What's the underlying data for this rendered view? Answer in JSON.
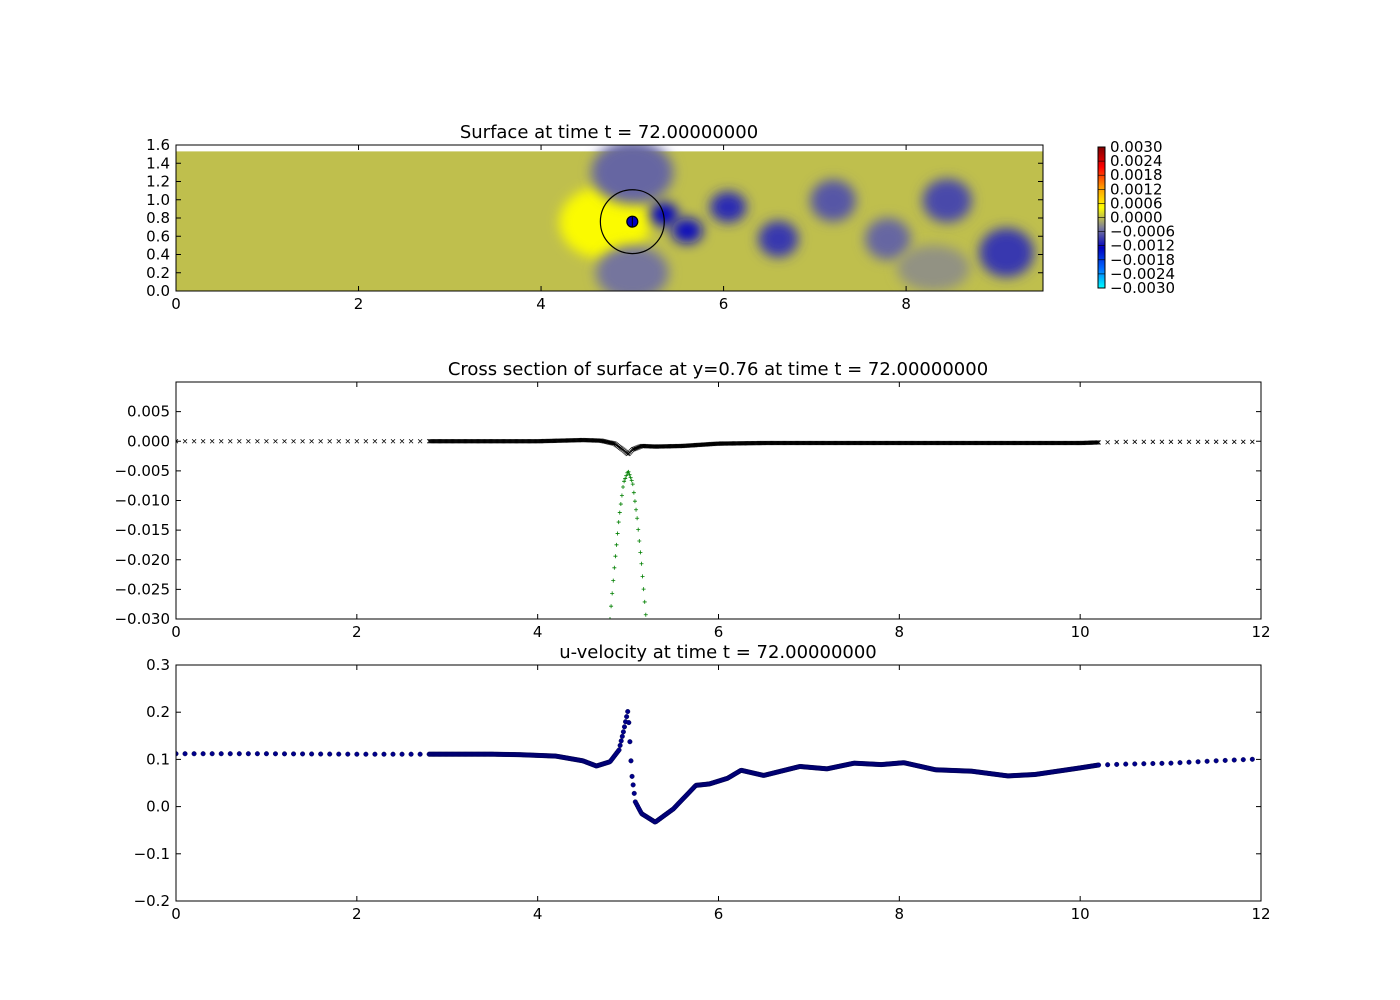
{
  "chart_data": [
    {
      "type": "heatmap",
      "title": "Surface at time t =    72.00000000",
      "xlabel": "",
      "ylabel": "",
      "xlim": [
        0,
        9.5
      ],
      "ylim": [
        0,
        1.6
      ],
      "xticks": [
        "0",
        "2",
        "4",
        "6",
        "8"
      ],
      "xtick_values": [
        0,
        2,
        4,
        6,
        8
      ],
      "yticks": [
        "0.0",
        "0.2",
        "0.4",
        "0.6",
        "0.8",
        "1.0",
        "1.2",
        "1.4",
        "1.6"
      ],
      "ytick_values": [
        0,
        0.2,
        0.4,
        0.6,
        0.8,
        1.0,
        1.2,
        1.4,
        1.6
      ],
      "field_top": 1.53,
      "colorbar": {
        "ticks": [
          "0.0030",
          "0.0024",
          "0.0018",
          "0.0012",
          "0.0006",
          "0.0000",
          "−0.0006",
          "−0.0012",
          "−0.0018",
          "−0.0024",
          "−0.0030"
        ],
        "range": [
          -0.003,
          0.003
        ],
        "colors": [
          "#00ffff",
          "#0066ff",
          "#0000c0",
          "#7f7f9a",
          "#ffff00",
          "#ff9900",
          "#ff0000",
          "#800000"
        ]
      },
      "background_value": 0.0,
      "body": {
        "x": 5.0,
        "y": 0.76,
        "outer_radius": 0.35,
        "inner_radius": 0.06
      },
      "features": [
        {
          "x": 4.7,
          "y": 0.75,
          "value": 0.0004,
          "rx": 0.5,
          "ry": 0.4
        },
        {
          "x": 5.0,
          "y": 1.3,
          "value": -0.0006,
          "rx": 0.45,
          "ry": 0.35
        },
        {
          "x": 5.0,
          "y": 0.2,
          "value": -0.0005,
          "rx": 0.4,
          "ry": 0.3
        },
        {
          "x": 5.35,
          "y": 0.84,
          "value": -0.0013,
          "rx": 0.15,
          "ry": 0.13
        },
        {
          "x": 5.6,
          "y": 0.66,
          "value": -0.0012,
          "rx": 0.17,
          "ry": 0.14
        },
        {
          "x": 6.05,
          "y": 0.92,
          "value": -0.001,
          "rx": 0.2,
          "ry": 0.17
        },
        {
          "x": 6.6,
          "y": 0.57,
          "value": -0.0009,
          "rx": 0.22,
          "ry": 0.2
        },
        {
          "x": 7.2,
          "y": 0.99,
          "value": -0.0007,
          "rx": 0.25,
          "ry": 0.23
        },
        {
          "x": 7.8,
          "y": 0.57,
          "value": -0.0006,
          "rx": 0.25,
          "ry": 0.23
        },
        {
          "x": 8.45,
          "y": 0.99,
          "value": -0.0008,
          "rx": 0.27,
          "ry": 0.24
        },
        {
          "x": 9.1,
          "y": 0.42,
          "value": -0.0009,
          "rx": 0.3,
          "ry": 0.27
        },
        {
          "x": 8.3,
          "y": 0.25,
          "value": -0.0003,
          "rx": 0.4,
          "ry": 0.25
        }
      ]
    },
    {
      "type": "scatter",
      "title": "Cross section of surface at y=0.76 at time t =    72.00000000",
      "xlabel": "",
      "ylabel": "",
      "xlim": [
        0,
        12
      ],
      "ylim": [
        -0.03,
        0.01
      ],
      "xticks": [
        "0",
        "2",
        "4",
        "6",
        "8",
        "10",
        "12"
      ],
      "xtick_values": [
        0,
        2,
        4,
        6,
        8,
        10,
        12
      ],
      "yticks": [
        "0.005",
        "0.000",
        "−0.005",
        "−0.010",
        "−0.015",
        "−0.020",
        "−0.025",
        "−0.030"
      ],
      "ytick_values": [
        0.005,
        0.0,
        -0.005,
        -0.01,
        -0.015,
        -0.02,
        -0.025,
        -0.03
      ],
      "series": [
        {
          "marker": "x",
          "color": "#000000",
          "x": [
            0.0,
            0.5,
            1.0,
            1.5,
            2.0,
            2.5,
            2.8,
            3.5,
            4.0,
            4.5,
            4.7,
            4.85,
            4.95,
            5.0,
            5.05,
            5.15,
            5.3,
            5.6,
            6.0,
            6.5,
            7.0,
            8.0,
            9.0,
            10.0,
            10.2,
            10.5,
            11.0,
            11.5,
            12.0
          ],
          "y": [
            0.0,
            0.0,
            0.0,
            0.0,
            0.0,
            0.0,
            0.0,
            0.0,
            0.0,
            0.0002,
            0.0001,
            -0.0004,
            -0.0015,
            -0.0022,
            -0.0014,
            -0.0008,
            -0.0009,
            -0.0008,
            -0.0004,
            -0.0003,
            -0.0003,
            -0.0003,
            -0.0003,
            -0.0003,
            -0.0002,
            -0.0001,
            -0.0001,
            -0.0001,
            -0.0001
          ]
        },
        {
          "marker": "+",
          "color": "#007f00",
          "x": [
            4.8,
            4.85,
            4.9,
            4.95,
            5.0,
            5.05,
            5.1,
            5.15,
            5.2
          ],
          "y": [
            -0.03,
            -0.021,
            -0.013,
            -0.007,
            -0.005,
            -0.007,
            -0.013,
            -0.021,
            -0.03
          ]
        }
      ]
    },
    {
      "type": "scatter",
      "title": "u-velocity at time t =    72.00000000",
      "xlabel": "",
      "ylabel": "",
      "xlim": [
        0,
        12
      ],
      "ylim": [
        -0.2,
        0.3
      ],
      "xticks": [
        "0",
        "2",
        "4",
        "6",
        "8",
        "10",
        "12"
      ],
      "xtick_values": [
        0,
        2,
        4,
        6,
        8,
        10,
        12
      ],
      "yticks": [
        "0.3",
        "0.2",
        "0.1",
        "0.0",
        "−0.1",
        "−0.2"
      ],
      "ytick_values": [
        0.3,
        0.2,
        0.1,
        0.0,
        -0.1,
        -0.2
      ],
      "series": [
        {
          "marker": "o",
          "color": "#00008b",
          "x": [
            0.0,
            1.0,
            2.0,
            2.8,
            3.5,
            3.8,
            4.2,
            4.5,
            4.65,
            4.8,
            4.9,
            4.95,
            5.0,
            5.04,
            5.08,
            5.15,
            5.3,
            5.5,
            5.75,
            5.9,
            6.1,
            6.25,
            6.5,
            6.9,
            7.2,
            7.5,
            7.8,
            8.05,
            8.4,
            8.8,
            9.2,
            9.5,
            10.0,
            10.2,
            10.5,
            11.0,
            11.5,
            12.0
          ],
          "y": [
            0.112,
            0.112,
            0.111,
            0.111,
            0.111,
            0.11,
            0.107,
            0.097,
            0.086,
            0.095,
            0.12,
            0.16,
            0.205,
            0.07,
            0.01,
            -0.015,
            -0.033,
            -0.005,
            0.045,
            0.048,
            0.06,
            0.077,
            0.066,
            0.085,
            0.08,
            0.092,
            0.089,
            0.093,
            0.078,
            0.075,
            0.065,
            0.068,
            0.082,
            0.088,
            0.09,
            0.092,
            0.097,
            0.101
          ]
        }
      ]
    }
  ]
}
